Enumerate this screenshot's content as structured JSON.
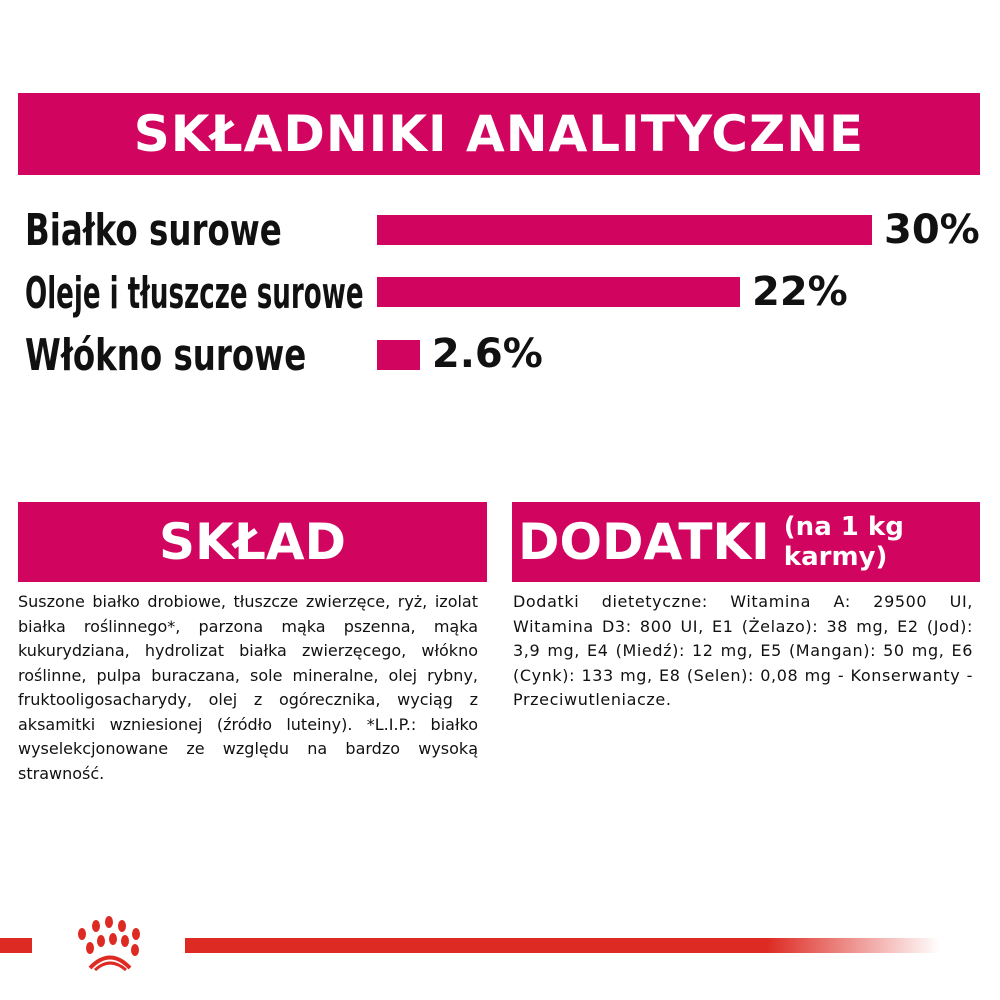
{
  "title": "SKŁADNIKI ANALITYCZNE",
  "nutrients": [
    {
      "label": "Białko surowe",
      "value": 30,
      "display": "30%"
    },
    {
      "label": "Oleje i tłuszcze surowe",
      "value": 22,
      "display": "22%"
    },
    {
      "label": "Włókno surowe",
      "value": 2.6,
      "display": "2.6%"
    }
  ],
  "accent_color": "#d1055f",
  "brand_color": "#dd2a22",
  "sklad": {
    "heading": "SKŁAD",
    "text": "Suszone białko drobiowe, tłuszcze zwierzęce, ryż, izolat białka roślinnego*, parzona mąka pszenna, mąka kukurydziana, hydrolizat białka zwierzęcego, włókno roślinne, pulpa buraczana, sole mineralne, olej rybny, fruktooligosacharydy, olej z ogórecznika, wyciąg z aksamitki wzniesionej (źródło luteiny). *L.I.P.: białko wyselekcjonowane ze względu na bardzo wysoką strawność."
  },
  "dodatki": {
    "heading": "DODATKI",
    "subheading": "(na 1 kg karmy)",
    "text": "Dodatki dietetyczne: Witamina A: 29500 UI, Witamina D3: 800 UI, E1 (Żelazo): 38 mg, E2 (Jod): 3,9 mg, E4 (Miedź): 12 mg, E5 (Mangan): 50 mg, E6 (Cynk): 133 mg, E8 (Selen): 0,08 mg - Konserwanty - Przeciwutleniacze."
  },
  "logo_icon": "royal-canin-crown-paw-icon"
}
